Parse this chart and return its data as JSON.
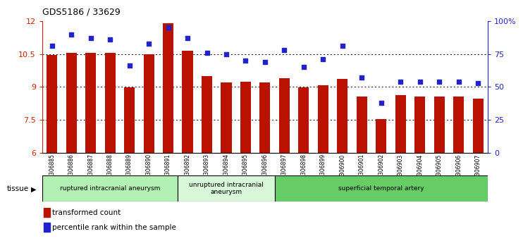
{
  "title": "GDS5186 / 33629",
  "samples": [
    "GSM1306885",
    "GSM1306886",
    "GSM1306887",
    "GSM1306888",
    "GSM1306889",
    "GSM1306890",
    "GSM1306891",
    "GSM1306892",
    "GSM1306893",
    "GSM1306894",
    "GSM1306895",
    "GSM1306896",
    "GSM1306897",
    "GSM1306898",
    "GSM1306899",
    "GSM1306900",
    "GSM1306901",
    "GSM1306902",
    "GSM1306903",
    "GSM1306904",
    "GSM1306905",
    "GSM1306906",
    "GSM1306907"
  ],
  "transformed_count": [
    10.45,
    10.55,
    10.55,
    10.55,
    8.98,
    10.5,
    11.9,
    10.65,
    9.5,
    9.2,
    9.25,
    9.2,
    9.4,
    8.98,
    9.08,
    9.35,
    8.55,
    7.53,
    8.62,
    8.55,
    8.55,
    8.55,
    8.45
  ],
  "percentile_rank": [
    81,
    90,
    87,
    86,
    66,
    83,
    95,
    87,
    76,
    75,
    70,
    69,
    78,
    65,
    71,
    81,
    57,
    38,
    54,
    54,
    54,
    54,
    53
  ],
  "ylim_left": [
    6,
    12
  ],
  "ylim_right": [
    0,
    100
  ],
  "yticks_left": [
    6,
    7.5,
    9,
    10.5,
    12
  ],
  "yticks_right": [
    0,
    25,
    50,
    75,
    100
  ],
  "ytick_labels_left": [
    "6",
    "7.5",
    "9",
    "10.5",
    "12"
  ],
  "ytick_labels_right": [
    "0",
    "25",
    "50",
    "75",
    "100%"
  ],
  "groups": [
    {
      "label": "ruptured intracranial aneurysm",
      "start": 0,
      "end": 7,
      "color": "#b3f0b3"
    },
    {
      "label": "unruptured intracranial\naneurysm",
      "start": 7,
      "end": 12,
      "color": "#d9f7d9"
    },
    {
      "label": "superficial temporal artery",
      "start": 12,
      "end": 23,
      "color": "#66cc66"
    }
  ],
  "bar_color": "#bb1100",
  "dot_color": "#2222cc",
  "left_axis_color": "#cc2200",
  "right_axis_color": "#2222cc",
  "grid_yticks": [
    7.5,
    9.0,
    10.5
  ],
  "legend_items": [
    {
      "color": "#bb1100",
      "label": "transformed count"
    },
    {
      "color": "#2222cc",
      "label": "percentile rank within the sample"
    }
  ]
}
